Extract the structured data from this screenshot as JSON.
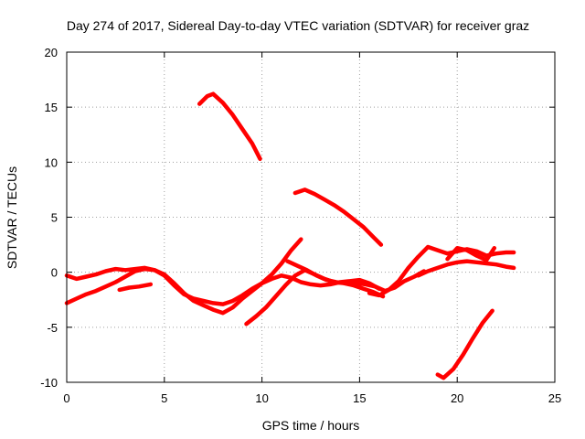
{
  "chart_data": {
    "type": "line",
    "title": "Day 274 of 2017, Sidereal Day-to-day VTEC variation (SDTVAR) for receiver graz",
    "xlabel": "GPS time / hours",
    "ylabel": "SDTVAR / TECUs",
    "xlim": [
      0,
      25
    ],
    "ylim": [
      -10,
      20
    ],
    "xticks": [
      0,
      5,
      10,
      15,
      20,
      25
    ],
    "yticks": [
      -10,
      -5,
      0,
      5,
      10,
      15,
      20
    ],
    "xtick_labels": [
      "0",
      "5",
      "10",
      "15",
      "20",
      "25"
    ],
    "ytick_labels": [
      "-10",
      "-5",
      "0",
      "5",
      "10",
      "15",
      "20"
    ],
    "grid": true,
    "legend": "none",
    "color": "#ff0000",
    "series": [
      {
        "name": "track-a",
        "x": [
          0,
          0.5,
          1,
          1.5,
          2,
          2.5,
          3,
          3.5,
          4,
          4.5,
          5,
          5.5,
          6,
          6.5,
          7,
          7.5,
          8,
          8.5,
          9,
          9.5,
          10,
          10.5,
          11,
          11.5,
          12,
          12.5,
          13,
          13.5,
          14,
          14.5,
          15,
          15.5,
          16
        ],
        "y": [
          -0.3,
          -0.6,
          -0.4,
          -0.2,
          0.1,
          0.3,
          0.2,
          0.3,
          0.4,
          0.2,
          -0.3,
          -1.2,
          -2.0,
          -2.4,
          -2.6,
          -2.8,
          -2.9,
          -2.6,
          -2.1,
          -1.5,
          -1.0,
          -0.6,
          -0.3,
          -0.5,
          -0.9,
          -1.1,
          -1.2,
          -1.1,
          -0.9,
          -0.8,
          -0.7,
          -1.0,
          -1.5
        ]
      },
      {
        "name": "track-b",
        "x": [
          0,
          0.5,
          1,
          1.5,
          2,
          2.5,
          3,
          3.5,
          4,
          4.5,
          5,
          5.5,
          6,
          6.5,
          7,
          7.5,
          8,
          8.5,
          9,
          9.5,
          10,
          10.5,
          11,
          11.5,
          12
        ],
        "y": [
          -2.8,
          -2.4,
          -2.0,
          -1.7,
          -1.3,
          -0.9,
          -0.4,
          0.1,
          0.3,
          0.2,
          -0.2,
          -1.0,
          -1.9,
          -2.6,
          -3.0,
          -3.4,
          -3.7,
          -3.2,
          -2.4,
          -1.7,
          -1.0,
          -0.2,
          0.8,
          2.0,
          3.0
        ]
      },
      {
        "name": "track-c",
        "x": [
          2.7,
          3.2,
          3.7,
          4.3
        ],
        "y": [
          -1.6,
          -1.4,
          -1.3,
          -1.1
        ]
      },
      {
        "name": "track-d",
        "x": [
          6.8,
          7.2,
          7.5,
          8.0,
          8.5,
          9.0,
          9.5,
          9.9
        ],
        "y": [
          15.3,
          16.0,
          16.2,
          15.4,
          14.3,
          13.0,
          11.7,
          10.3
        ]
      },
      {
        "name": "track-e",
        "x": [
          9.2,
          9.7,
          10.2,
          10.7,
          11.2,
          11.7,
          12.2,
          12.7,
          13.2,
          13.7,
          14.2,
          14.7,
          15.2,
          15.7,
          16.2
        ],
        "y": [
          -4.7,
          -4.0,
          -3.2,
          -2.2,
          -1.2,
          -0.3,
          0.2,
          -0.2,
          -0.6,
          -0.9,
          -1.0,
          -1.2,
          -1.5,
          -1.8,
          -2.2
        ]
      },
      {
        "name": "track-f",
        "x": [
          11.7,
          12.2,
          12.7,
          13.2,
          13.7,
          14.2,
          14.7,
          15.2,
          15.7,
          16.1
        ],
        "y": [
          7.2,
          7.5,
          7.1,
          6.6,
          6.1,
          5.5,
          4.8,
          4.1,
          3.2,
          2.5
        ]
      },
      {
        "name": "track-g",
        "x": [
          11.3,
          11.8,
          12.3,
          12.8,
          13.3,
          13.8,
          14.3,
          14.8,
          15.3,
          15.8,
          16.3,
          16.8,
          17.3,
          17.8,
          18.3
        ],
        "y": [
          1.0,
          0.6,
          0.2,
          -0.3,
          -0.7,
          -0.9,
          -1.0,
          -1.0,
          -1.1,
          -1.3,
          -1.7,
          -1.4,
          -0.8,
          -0.4,
          0.1
        ]
      },
      {
        "name": "track-h",
        "x": [
          15.5,
          16.0,
          16.5,
          17.0,
          17.5,
          18.0,
          18.5,
          19.0,
          19.5,
          20.0,
          20.5,
          21.0,
          21.5,
          22.0,
          22.5,
          22.9
        ],
        "y": [
          -1.9,
          -2.1,
          -1.6,
          -0.8,
          0.4,
          1.4,
          2.3,
          2.0,
          1.7,
          1.9,
          2.1,
          1.9,
          1.5,
          1.7,
          1.8,
          1.8
        ]
      },
      {
        "name": "track-i",
        "x": [
          18.0,
          18.5,
          19.0,
          19.5,
          20.0,
          20.5,
          21.0,
          21.5,
          22.0,
          22.5,
          22.9
        ],
        "y": [
          -0.3,
          0.1,
          0.4,
          0.7,
          0.9,
          1.0,
          0.9,
          0.8,
          0.7,
          0.5,
          0.4
        ]
      },
      {
        "name": "track-j",
        "x": [
          19.0,
          19.3,
          19.8,
          20.3,
          20.8,
          21.3,
          21.8
        ],
        "y": [
          -9.3,
          -9.6,
          -8.8,
          -7.5,
          -6.0,
          -4.6,
          -3.5
        ]
      },
      {
        "name": "track-k",
        "x": [
          19.5,
          20.0,
          20.5,
          21.0,
          21.5,
          21.9
        ],
        "y": [
          1.2,
          2.2,
          2.0,
          1.5,
          1.1,
          2.2
        ]
      }
    ]
  }
}
